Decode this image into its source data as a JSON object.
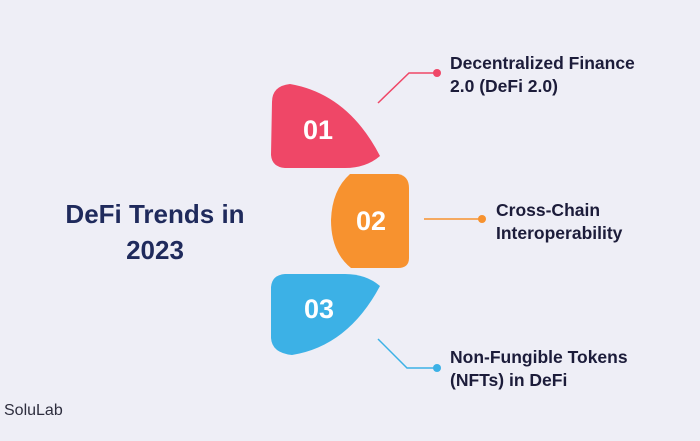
{
  "title": {
    "line1": "DeFi Trends in",
    "line2": "2023"
  },
  "segments": [
    {
      "number": "01",
      "color": "#ef4767",
      "label_line1": "Decentralized Finance",
      "label_line2": "2.0 (DeFi 2.0)"
    },
    {
      "number": "02",
      "color": "#f7922f",
      "label_line1": "Cross-Chain",
      "label_line2": "Interoperability"
    },
    {
      "number": "03",
      "color": "#3cb1e6",
      "label_line1": "Non-Fungible Tokens",
      "label_line2": "(NFTs) in DeFi"
    }
  ],
  "brand": "SoluLab"
}
